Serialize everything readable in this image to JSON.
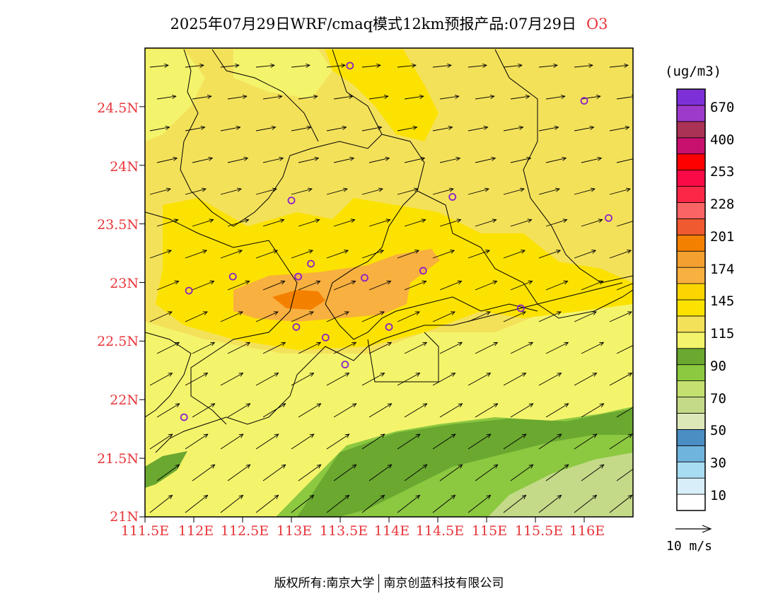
{
  "title": {
    "text": "2025年07月29日WRF/cmaq模式12km预报产品:07月29日",
    "species": "O3"
  },
  "axes": {
    "y_ticks": [
      "24.5N",
      "24N",
      "23.5N",
      "23N",
      "22.5N",
      "22N",
      "21.5N",
      "21N"
    ],
    "x_ticks": [
      "111.5E",
      "112E",
      "112.5E",
      "113E",
      "113.5E",
      "114E",
      "114.5E",
      "115E",
      "115.5E",
      "116E"
    ]
  },
  "colorbar": {
    "unit": "(ug/m3)",
    "colors": [
      "#ffffff",
      "#d8eef8",
      "#a8dcf2",
      "#6fb4dc",
      "#4a8ec4",
      "#dde8b8",
      "#c4da88",
      "#c4e070",
      "#8cc840",
      "#6aa830",
      "#f4f46c",
      "#f4e15a",
      "#fce200",
      "#fcd500",
      "#f8b040",
      "#f4a030",
      "#f48000",
      "#f05a30",
      "#fa6464",
      "#fa2846",
      "#fa0a46",
      "#ff0000",
      "#c8106e",
      "#aa3355",
      "#9e3acb",
      "#7e30d8"
    ],
    "labels": [
      "10",
      "30",
      "50",
      "70",
      "90",
      "115",
      "145",
      "174",
      "201",
      "228",
      "253",
      "400",
      "670"
    ]
  },
  "wind": {
    "reference_label": "10 m/s"
  },
  "stations": [
    {
      "lon": 113.6,
      "lat": 24.85
    },
    {
      "lon": 116.0,
      "lat": 24.55
    },
    {
      "lon": 113.0,
      "lat": 23.7
    },
    {
      "lon": 114.65,
      "lat": 23.73
    },
    {
      "lon": 116.25,
      "lat": 23.55
    },
    {
      "lon": 113.2,
      "lat": 23.16
    },
    {
      "lon": 112.4,
      "lat": 23.05
    },
    {
      "lon": 113.07,
      "lat": 23.05
    },
    {
      "lon": 113.75,
      "lat": 23.04
    },
    {
      "lon": 114.35,
      "lat": 23.1
    },
    {
      "lon": 111.95,
      "lat": 22.93
    },
    {
      "lon": 115.35,
      "lat": 22.78
    },
    {
      "lon": 113.05,
      "lat": 22.62
    },
    {
      "lon": 114.0,
      "lat": 22.62
    },
    {
      "lon": 113.35,
      "lat": 22.53
    },
    {
      "lon": 113.55,
      "lat": 22.3
    },
    {
      "lon": 111.9,
      "lat": 21.85
    }
  ],
  "footer": {
    "left": "版权所有:南京大学",
    "right": "南京创蓝科技有限公司"
  }
}
